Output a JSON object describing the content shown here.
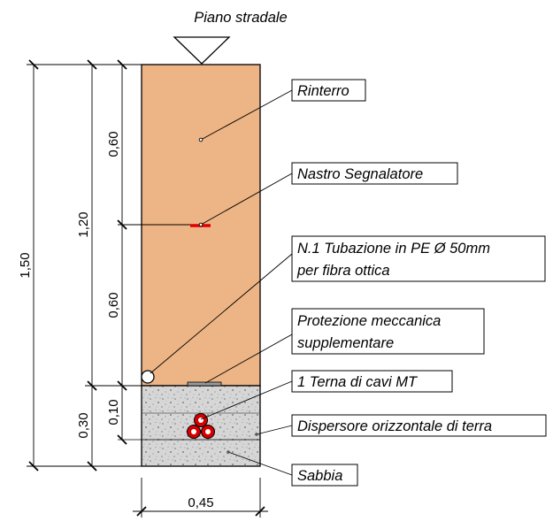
{
  "surface_label": "Piano stradale",
  "dimensions": {
    "total_depth": "1,50",
    "depth_to_protection": "1,20",
    "upper_backfill": "0,60",
    "lower_backfill": "0,60",
    "sand_layer": "0,30",
    "cable_zone": "0,10",
    "trench_width": "0,45"
  },
  "labels": {
    "backfill": "Rinterro",
    "warning_tape": "Nastro Segnalatore",
    "conduit_line1": "N.1 Tubazione in PE Ø 50mm",
    "conduit_line2": "per fibra ottica",
    "protection_line1": "Protezione meccanica",
    "protection_line2": "supplementare",
    "cables": "1 Terna di cavi MT",
    "ground_conductor": "Dispersore orizzontale di terra",
    "sand": "Sabbia"
  },
  "colors": {
    "backfill": "#EDB585",
    "sand": "#D9D9D9",
    "warning_tape": "#E00000",
    "cable": "#D40000"
  }
}
